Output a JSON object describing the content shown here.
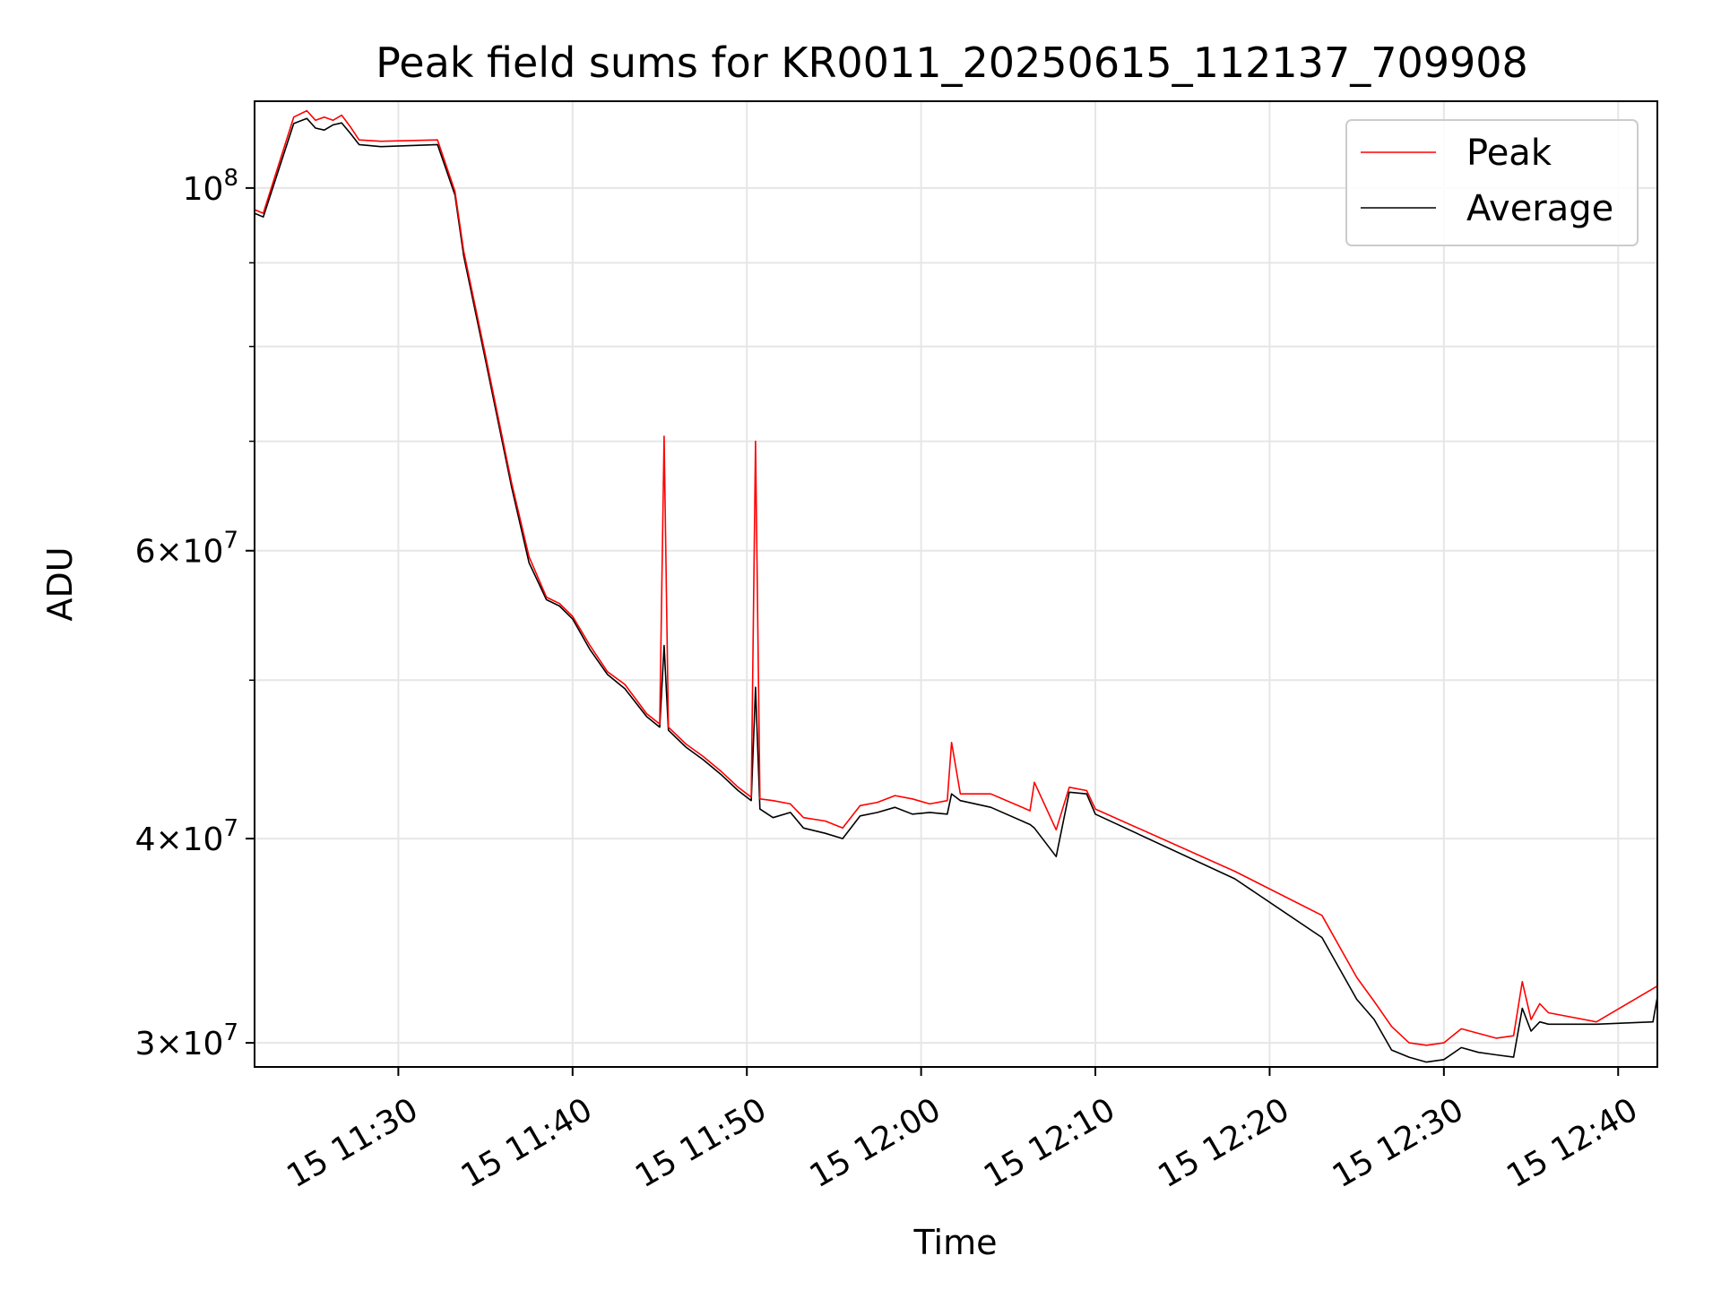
{
  "chart_data": {
    "type": "line",
    "title": "Peak field sums for KR0011_20250615_112137_709908",
    "xlabel": "Time",
    "ylabel": "ADU",
    "yscale": "log",
    "grid": true,
    "legend_position": "top-right",
    "xlim": [
      "2025-06-15 11:21:45",
      "2025-06-15 12:42:15"
    ],
    "ylim": [
      29000000,
      113000000
    ],
    "x_ticks": [
      {
        "value": "2025-06-15 11:30",
        "label": "15 11:30"
      },
      {
        "value": "2025-06-15 11:40",
        "label": "15 11:40"
      },
      {
        "value": "2025-06-15 11:50",
        "label": "15 11:50"
      },
      {
        "value": "2025-06-15 12:00",
        "label": "15 12:00"
      },
      {
        "value": "2025-06-15 12:10",
        "label": "15 12:10"
      },
      {
        "value": "2025-06-15 12:20",
        "label": "15 12:20"
      },
      {
        "value": "2025-06-15 12:30",
        "label": "15 12:30"
      },
      {
        "value": "2025-06-15 12:40",
        "label": "15 12:40"
      }
    ],
    "y_ticks": [
      {
        "value": 30000000,
        "base": "3",
        "exp": "7"
      },
      {
        "value": 40000000,
        "base": "4",
        "exp": "7"
      },
      {
        "value": 60000000,
        "base": "6",
        "exp": "7"
      },
      {
        "value": 100000000,
        "base": "",
        "exp": "8"
      }
    ],
    "y_minor_ticks": [
      50000000,
      70000000,
      80000000,
      90000000
    ],
    "series": [
      {
        "name": "Peak",
        "color": "#ff0000",
        "points": [
          [
            "2025-06-15 11:21:45",
            97000000
          ],
          [
            "2025-06-15 11:22:15",
            96500000
          ],
          [
            "2025-06-15 11:24:00",
            110500000
          ],
          [
            "2025-06-15 11:24:45",
            111500000
          ],
          [
            "2025-06-15 11:25:15",
            110000000
          ],
          [
            "2025-06-15 11:25:45",
            110500000
          ],
          [
            "2025-06-15 11:26:15",
            110000000
          ],
          [
            "2025-06-15 11:26:45",
            110800000
          ],
          [
            "2025-06-15 11:27:15",
            109000000
          ],
          [
            "2025-06-15 11:27:45",
            107000000
          ],
          [
            "2025-06-15 11:29:00",
            106800000
          ],
          [
            "2025-06-15 11:32:15",
            107000000
          ],
          [
            "2025-06-15 11:33:15",
            99500000
          ],
          [
            "2025-06-15 11:33:45",
            91500000
          ],
          [
            "2025-06-15 11:35:00",
            79000000
          ],
          [
            "2025-06-15 11:36:30",
            66000000
          ],
          [
            "2025-06-15 11:37:30",
            59500000
          ],
          [
            "2025-06-15 11:38:30",
            56200000
          ],
          [
            "2025-06-15 11:39:15",
            55700000
          ],
          [
            "2025-06-15 11:40:00",
            54700000
          ],
          [
            "2025-06-15 11:41:00",
            52500000
          ],
          [
            "2025-06-15 11:42:00",
            50600000
          ],
          [
            "2025-06-15 11:43:00",
            49700000
          ],
          [
            "2025-06-15 11:44:15",
            47700000
          ],
          [
            "2025-06-15 11:45:00",
            47000000
          ],
          [
            "2025-06-15 11:45:15",
            70500000
          ],
          [
            "2025-06-15 11:45:30",
            46800000
          ],
          [
            "2025-06-15 11:46:30",
            45700000
          ],
          [
            "2025-06-15 11:47:30",
            44900000
          ],
          [
            "2025-06-15 11:48:30",
            44000000
          ],
          [
            "2025-06-15 11:49:30",
            43000000
          ],
          [
            "2025-06-15 11:50:15",
            42400000
          ],
          [
            "2025-06-15 11:50:30",
            70000000
          ],
          [
            "2025-06-15 11:50:45",
            42300000
          ],
          [
            "2025-06-15 11:51:30",
            42200000
          ],
          [
            "2025-06-15 11:52:30",
            42000000
          ],
          [
            "2025-06-15 11:53:15",
            41200000
          ],
          [
            "2025-06-15 11:54:30",
            41000000
          ],
          [
            "2025-06-15 11:55:30",
            40600000
          ],
          [
            "2025-06-15 11:56:30",
            41900000
          ],
          [
            "2025-06-15 11:57:30",
            42100000
          ],
          [
            "2025-06-15 11:58:30",
            42500000
          ],
          [
            "2025-06-15 11:59:30",
            42300000
          ],
          [
            "2025-06-15 12:00:30",
            42000000
          ],
          [
            "2025-06-15 12:01:30",
            42200000
          ],
          [
            "2025-06-15 12:01:45",
            45800000
          ],
          [
            "2025-06-15 12:02:15",
            42600000
          ],
          [
            "2025-06-15 12:04:00",
            42600000
          ],
          [
            "2025-06-15 12:06:15",
            41600000
          ],
          [
            "2025-06-15 12:06:30",
            43300000
          ],
          [
            "2025-06-15 12:07:45",
            40500000
          ],
          [
            "2025-06-15 12:08:30",
            43000000
          ],
          [
            "2025-06-15 12:09:30",
            42800000
          ],
          [
            "2025-06-15 12:10:00",
            41700000
          ],
          [
            "2025-06-15 12:18:00",
            38200000
          ],
          [
            "2025-06-15 12:23:00",
            35900000
          ],
          [
            "2025-06-15 12:25:00",
            32900000
          ],
          [
            "2025-06-15 12:26:00",
            31800000
          ],
          [
            "2025-06-15 12:27:00",
            30700000
          ],
          [
            "2025-06-15 12:28:00",
            30000000
          ],
          [
            "2025-06-15 12:29:00",
            29900000
          ],
          [
            "2025-06-15 12:30:00",
            30000000
          ],
          [
            "2025-06-15 12:31:00",
            30600000
          ],
          [
            "2025-06-15 12:32:00",
            30400000
          ],
          [
            "2025-06-15 12:33:00",
            30200000
          ],
          [
            "2025-06-15 12:34:00",
            30300000
          ],
          [
            "2025-06-15 12:34:30",
            32700000
          ],
          [
            "2025-06-15 12:35:00",
            31000000
          ],
          [
            "2025-06-15 12:35:30",
            31700000
          ],
          [
            "2025-06-15 12:36:00",
            31300000
          ],
          [
            "2025-06-15 12:38:45",
            30900000
          ],
          [
            "2025-06-15 12:42:15",
            32500000
          ]
        ]
      },
      {
        "name": "Average",
        "color": "#000000",
        "points": [
          [
            "2025-06-15 11:21:45",
            96500000
          ],
          [
            "2025-06-15 11:22:15",
            96000000
          ],
          [
            "2025-06-15 11:24:00",
            109500000
          ],
          [
            "2025-06-15 11:24:45",
            110300000
          ],
          [
            "2025-06-15 11:25:15",
            108800000
          ],
          [
            "2025-06-15 11:25:45",
            108500000
          ],
          [
            "2025-06-15 11:26:15",
            109300000
          ],
          [
            "2025-06-15 11:26:45",
            109600000
          ],
          [
            "2025-06-15 11:27:15",
            108000000
          ],
          [
            "2025-06-15 11:27:45",
            106300000
          ],
          [
            "2025-06-15 11:29:00",
            106000000
          ],
          [
            "2025-06-15 11:32:15",
            106300000
          ],
          [
            "2025-06-15 11:33:15",
            99000000
          ],
          [
            "2025-06-15 11:33:45",
            90900000
          ],
          [
            "2025-06-15 11:35:00",
            78500000
          ],
          [
            "2025-06-15 11:36:30",
            65600000
          ],
          [
            "2025-06-15 11:37:30",
            59000000
          ],
          [
            "2025-06-15 11:38:30",
            56000000
          ],
          [
            "2025-06-15 11:39:15",
            55500000
          ],
          [
            "2025-06-15 11:40:00",
            54500000
          ],
          [
            "2025-06-15 11:41:00",
            52200000
          ],
          [
            "2025-06-15 11:42:00",
            50400000
          ],
          [
            "2025-06-15 11:43:00",
            49400000
          ],
          [
            "2025-06-15 11:44:15",
            47500000
          ],
          [
            "2025-06-15 11:45:00",
            46800000
          ],
          [
            "2025-06-15 11:45:15",
            52500000
          ],
          [
            "2025-06-15 11:45:30",
            46600000
          ],
          [
            "2025-06-15 11:46:30",
            45500000
          ],
          [
            "2025-06-15 11:47:30",
            44700000
          ],
          [
            "2025-06-15 11:48:30",
            43800000
          ],
          [
            "2025-06-15 11:49:30",
            42800000
          ],
          [
            "2025-06-15 11:50:15",
            42200000
          ],
          [
            "2025-06-15 11:50:30",
            49500000
          ],
          [
            "2025-06-15 11:50:45",
            41700000
          ],
          [
            "2025-06-15 11:51:30",
            41200000
          ],
          [
            "2025-06-15 11:52:30",
            41500000
          ],
          [
            "2025-06-15 11:53:15",
            40600000
          ],
          [
            "2025-06-15 11:54:30",
            40300000
          ],
          [
            "2025-06-15 11:55:30",
            40000000
          ],
          [
            "2025-06-15 11:56:30",
            41300000
          ],
          [
            "2025-06-15 11:57:30",
            41500000
          ],
          [
            "2025-06-15 11:58:30",
            41800000
          ],
          [
            "2025-06-15 11:59:30",
            41400000
          ],
          [
            "2025-06-15 12:00:30",
            41500000
          ],
          [
            "2025-06-15 12:01:30",
            41400000
          ],
          [
            "2025-06-15 12:01:45",
            42600000
          ],
          [
            "2025-06-15 12:02:15",
            42200000
          ],
          [
            "2025-06-15 12:04:00",
            41800000
          ],
          [
            "2025-06-15 12:06:15",
            40800000
          ],
          [
            "2025-06-15 12:06:30",
            40600000
          ],
          [
            "2025-06-15 12:07:45",
            39000000
          ],
          [
            "2025-06-15 12:08:30",
            42700000
          ],
          [
            "2025-06-15 12:09:30",
            42600000
          ],
          [
            "2025-06-15 12:10:00",
            41400000
          ],
          [
            "2025-06-15 12:18:00",
            37800000
          ],
          [
            "2025-06-15 12:23:00",
            34800000
          ],
          [
            "2025-06-15 12:25:00",
            31900000
          ],
          [
            "2025-06-15 12:26:00",
            31000000
          ],
          [
            "2025-06-15 12:27:00",
            29700000
          ],
          [
            "2025-06-15 12:28:00",
            29400000
          ],
          [
            "2025-06-15 12:29:00",
            29200000
          ],
          [
            "2025-06-15 12:30:00",
            29300000
          ],
          [
            "2025-06-15 12:31:00",
            29800000
          ],
          [
            "2025-06-15 12:32:00",
            29600000
          ],
          [
            "2025-06-15 12:33:00",
            29500000
          ],
          [
            "2025-06-15 12:34:00",
            29400000
          ],
          [
            "2025-06-15 12:34:30",
            31500000
          ],
          [
            "2025-06-15 12:35:00",
            30500000
          ],
          [
            "2025-06-15 12:35:30",
            30900000
          ],
          [
            "2025-06-15 12:36:00",
            30800000
          ],
          [
            "2025-06-15 12:38:45",
            30800000
          ],
          [
            "2025-06-15 12:42:00",
            30900000
          ],
          [
            "2025-06-15 12:42:15",
            32000000
          ]
        ]
      }
    ]
  }
}
